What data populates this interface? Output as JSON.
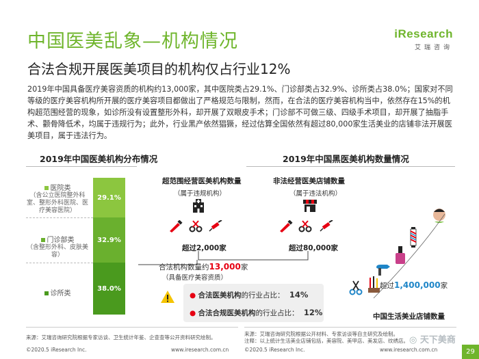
{
  "header": {
    "title": "中国医美乱象—机构情况",
    "subtitle": "合法合规开展医美项目的机构仅占行业12%",
    "logo_main": "iResearch",
    "logo_sub": "艾瑞咨询"
  },
  "intro": "2019年中国具备医疗美容资质的机构约13,000家，其中医院类占29.1%、门诊部类占32.9%、诊所类占38.0%；国家对不同等级的医疗美容机构所开展的医疗美容项目都做出了严格规范与限制，然而，在合法的医疗美容机构当中，依然存在15%的机构超范围经营的现象，如诊所没有设置整形外科，却开展了双眼皮手术；门诊部不可做三级、四级手术项目，却开展了抽脂手术、颧骨降低术，均属于违规行为；此外，行业黑产依然猖獗，经过估算全国依然有超过80,000家生活美业的店铺非法开展医美项目，属于违法行为。",
  "left": {
    "section_title": "2019年中国医美机构分布情况",
    "hospital_label": "医院类",
    "hospital_note": "（含公立医院整外科室、整形外科医院、医疗美容医院）",
    "clinic_label": "门诊部类",
    "clinic_note": "（含整形外科、皮肤美容）",
    "small_clinic_label": "诊所类"
  },
  "chart_data": {
    "type": "bar",
    "title": "2019年中国医美机构分布情况",
    "categories": [
      "医院类",
      "门诊部类",
      "诊所类"
    ],
    "values": [
      29.1,
      32.9,
      38.0
    ],
    "value_labels": [
      "29.1%",
      "32.9%",
      "38.0%"
    ],
    "colors": [
      "#8cc63f",
      "#6ab02e",
      "#4a9a1e"
    ]
  },
  "right": {
    "section_title": "2019年中国黑医美机构数量情况",
    "over_scope_title": "超范围经营医美机构数量",
    "over_scope_note": "（属于违规机构）",
    "over_scope_count": "超过2,000家",
    "illegal_title": "非法经营医美店铺数量",
    "illegal_note": "（属于违法机构）",
    "illegal_count": "超过80,000家",
    "legal_total_prefix": "合法机构数量约",
    "legal_total_number": "13,000",
    "legal_total_suffix": "家",
    "legal_total_note": "（具备医疗美容资质）",
    "stat1_name": "合法医美机构",
    "stat1_mid": "的行业占比：",
    "stat1_value": "14%",
    "stat2_name": "合法合规医美机构",
    "stat2_mid": "的行业占比：",
    "stat2_value": "12%",
    "life_prefix": "超过",
    "life_number": "1,400,000",
    "life_suffix": "家",
    "life_caption": "中国生活美业店铺数量"
  },
  "footer": {
    "source_left": "来源：艾瑞咨询研究院根据专家访谈、卫生统计年鉴、企查查等公开资料研究绘制。",
    "source_right_1": "来源：艾瑞咨询研究院根据公开材料、专家访谈等自主研究及绘制。",
    "source_right_2": "注释：以上统计生活美业店铺包括，美容院、美甲店、美发店、纹绣店。",
    "copyright_left": "©2020.5 iResearch Inc.",
    "url_left": "www.iresearch.com.cn",
    "copyright_right": "©2020.5 iResearch Inc.",
    "url_right": "www.iresearch.com.cn",
    "page_number": "29",
    "watermark": "天下美商"
  },
  "colors": {
    "brand_green": "#6fb52c",
    "accent_red": "#e60012",
    "accent_blue": "#1f86c8",
    "warning_yellow": "#f5c400"
  }
}
